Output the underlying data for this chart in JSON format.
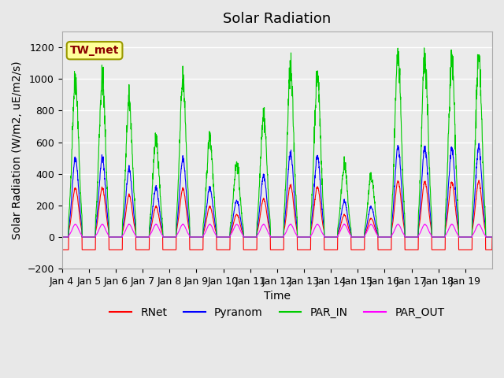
{
  "title": "Solar Radiation",
  "ylabel": "Solar Radiation (W/m2, uE/m2/s)",
  "xlabel": "Time",
  "ylim": [
    -200,
    1300
  ],
  "yticks": [
    -200,
    0,
    200,
    400,
    600,
    800,
    1000,
    1200
  ],
  "xtick_labels": [
    "Jan 4",
    "Jan 5",
    "Jan 6",
    "Jan 7",
    "Jan 8",
    "Jan 9",
    "Jan 10",
    "Jan 11",
    "Jan 12",
    "Jan 13",
    "Jan 14",
    "Jan 15",
    "Jan 16",
    "Jan 17",
    "Jan 18",
    "Jan 19"
  ],
  "colors": {
    "RNet": "#ff0000",
    "Pyranom": "#0000ff",
    "PAR_IN": "#00cc00",
    "PAR_OUT": "#ff00ff"
  },
  "site_label": "TW_met",
  "site_label_color": "#8b0000",
  "site_box_facecolor": "#ffff99",
  "site_box_edgecolor": "#999900",
  "bg_color": "#e8e8e8",
  "plot_bg": "#ebebeb",
  "grid_color": "#ffffff",
  "title_fontsize": 13,
  "axis_fontsize": 10,
  "tick_fontsize": 9,
  "legend_fontsize": 10,
  "day_quality": [
    1.0,
    1.0,
    0.85,
    0.62,
    0.98,
    0.62,
    0.46,
    0.78,
    1.05,
    1.02,
    0.45,
    0.38,
    1.13,
    1.13,
    1.11,
    1.12
  ],
  "RNet_night": -80,
  "npts_per_day": 144
}
